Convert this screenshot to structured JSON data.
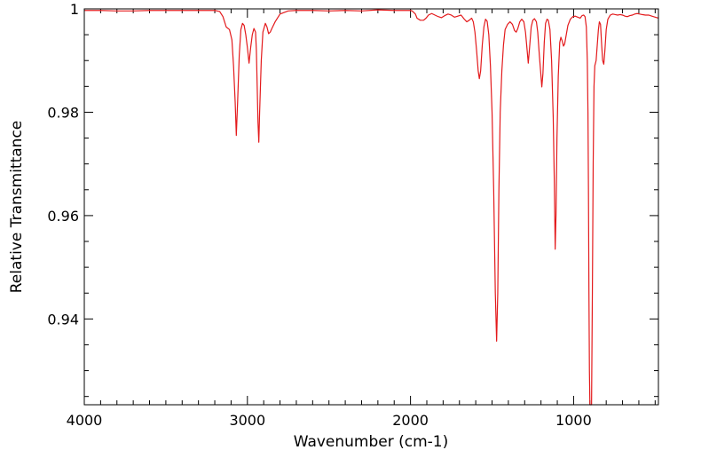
{
  "chart_data": {
    "type": "line",
    "title": "",
    "xlabel": "Wavenumber (cm-1)",
    "ylabel": "Relative Transmittance",
    "xlim": [
      4000,
      480
    ],
    "ylim": [
      0.9234,
      1.0
    ],
    "x_reversed": true,
    "grid": false,
    "legend": "none",
    "x_ticks": [
      {
        "value": 4000,
        "label": "4000"
      },
      {
        "value": 3000,
        "label": "3000"
      },
      {
        "value": 2000,
        "label": "2000"
      },
      {
        "value": 1000,
        "label": "1000"
      }
    ],
    "y_ticks": [
      {
        "value": 1.0,
        "label": "1"
      },
      {
        "value": 0.98,
        "label": "0.98"
      },
      {
        "value": 0.96,
        "label": "0.96"
      },
      {
        "value": 0.94,
        "label": "0.94"
      }
    ],
    "series": [
      {
        "color": "#e31a1c",
        "points": [
          [
            4000,
            0.9997
          ],
          [
            3900,
            0.9997
          ],
          [
            3800,
            0.9996
          ],
          [
            3700,
            0.9996
          ],
          [
            3600,
            0.9997
          ],
          [
            3500,
            0.9997
          ],
          [
            3400,
            0.9997
          ],
          [
            3300,
            0.9997
          ],
          [
            3250,
            0.9997
          ],
          [
            3200,
            0.9997
          ],
          [
            3170,
            0.9995
          ],
          [
            3150,
            0.9985
          ],
          [
            3130,
            0.9965
          ],
          [
            3110,
            0.996
          ],
          [
            3095,
            0.994
          ],
          [
            3085,
            0.989
          ],
          [
            3075,
            0.982
          ],
          [
            3068,
            0.9755
          ],
          [
            3060,
            0.982
          ],
          [
            3050,
            0.991
          ],
          [
            3040,
            0.996
          ],
          [
            3030,
            0.9972
          ],
          [
            3020,
            0.9968
          ],
          [
            3010,
            0.995
          ],
          [
            3000,
            0.9925
          ],
          [
            2990,
            0.9895
          ],
          [
            2980,
            0.9925
          ],
          [
            2970,
            0.995
          ],
          [
            2960,
            0.9962
          ],
          [
            2950,
            0.9955
          ],
          [
            2945,
            0.992
          ],
          [
            2940,
            0.985
          ],
          [
            2935,
            0.978
          ],
          [
            2930,
            0.9742
          ],
          [
            2925,
            0.98
          ],
          [
            2915,
            0.99
          ],
          [
            2905,
            0.9955
          ],
          [
            2890,
            0.9972
          ],
          [
            2880,
            0.9965
          ],
          [
            2870,
            0.9952
          ],
          [
            2860,
            0.9955
          ],
          [
            2850,
            0.9962
          ],
          [
            2830,
            0.9975
          ],
          [
            2800,
            0.999
          ],
          [
            2750,
            0.9996
          ],
          [
            2700,
            0.9997
          ],
          [
            2600,
            0.9997
          ],
          [
            2500,
            0.9996
          ],
          [
            2400,
            0.9997
          ],
          [
            2300,
            0.9996
          ],
          [
            2200,
            0.9998
          ],
          [
            2100,
            0.9997
          ],
          [
            2000,
            0.9997
          ],
          [
            1990,
            0.9996
          ],
          [
            1970,
            0.999
          ],
          [
            1960,
            0.9982
          ],
          [
            1940,
            0.9978
          ],
          [
            1920,
            0.9978
          ],
          [
            1905,
            0.9982
          ],
          [
            1890,
            0.9988
          ],
          [
            1870,
            0.9991
          ],
          [
            1850,
            0.9988
          ],
          [
            1830,
            0.9985
          ],
          [
            1810,
            0.9983
          ],
          [
            1790,
            0.9987
          ],
          [
            1770,
            0.999
          ],
          [
            1750,
            0.9988
          ],
          [
            1730,
            0.9984
          ],
          [
            1710,
            0.9986
          ],
          [
            1690,
            0.9988
          ],
          [
            1670,
            0.998
          ],
          [
            1655,
            0.9975
          ],
          [
            1640,
            0.9978
          ],
          [
            1625,
            0.9982
          ],
          [
            1615,
            0.9975
          ],
          [
            1605,
            0.9955
          ],
          [
            1595,
            0.992
          ],
          [
            1585,
            0.988
          ],
          [
            1578,
            0.9865
          ],
          [
            1570,
            0.988
          ],
          [
            1560,
            0.993
          ],
          [
            1550,
            0.9965
          ],
          [
            1540,
            0.998
          ],
          [
            1530,
            0.9976
          ],
          [
            1520,
            0.995
          ],
          [
            1510,
            0.989
          ],
          [
            1500,
            0.98
          ],
          [
            1490,
            0.965
          ],
          [
            1480,
            0.945
          ],
          [
            1472,
            0.9357
          ],
          [
            1465,
            0.945
          ],
          [
            1458,
            0.965
          ],
          [
            1450,
            0.98
          ],
          [
            1440,
            0.988
          ],
          [
            1430,
            0.993
          ],
          [
            1420,
            0.996
          ],
          [
            1405,
            0.997
          ],
          [
            1390,
            0.9975
          ],
          [
            1375,
            0.997
          ],
          [
            1362,
            0.9958
          ],
          [
            1352,
            0.9955
          ],
          [
            1342,
            0.9962
          ],
          [
            1330,
            0.9975
          ],
          [
            1318,
            0.998
          ],
          [
            1305,
            0.9975
          ],
          [
            1295,
            0.9955
          ],
          [
            1285,
            0.992
          ],
          [
            1278,
            0.9895
          ],
          [
            1270,
            0.9925
          ],
          [
            1260,
            0.9965
          ],
          [
            1250,
            0.9978
          ],
          [
            1240,
            0.9981
          ],
          [
            1228,
            0.9975
          ],
          [
            1220,
            0.9955
          ],
          [
            1210,
            0.991
          ],
          [
            1200,
            0.987
          ],
          [
            1195,
            0.9849
          ],
          [
            1188,
            0.9875
          ],
          [
            1180,
            0.9935
          ],
          [
            1172,
            0.9972
          ],
          [
            1163,
            0.998
          ],
          [
            1155,
            0.9978
          ],
          [
            1145,
            0.996
          ],
          [
            1135,
            0.99
          ],
          [
            1125,
            0.979
          ],
          [
            1118,
            0.966
          ],
          [
            1113,
            0.9535
          ],
          [
            1108,
            0.96
          ],
          [
            1102,
            0.975
          ],
          [
            1094,
            0.987
          ],
          [
            1085,
            0.9935
          ],
          [
            1078,
            0.9945
          ],
          [
            1070,
            0.9938
          ],
          [
            1062,
            0.9928
          ],
          [
            1055,
            0.9932
          ],
          [
            1045,
            0.995
          ],
          [
            1035,
            0.9968
          ],
          [
            1020,
            0.998
          ],
          [
            1005,
            0.9985
          ],
          [
            990,
            0.9986
          ],
          [
            975,
            0.9984
          ],
          [
            960,
            0.9982
          ],
          [
            948,
            0.9987
          ],
          [
            938,
            0.9988
          ],
          [
            930,
            0.9985
          ],
          [
            922,
            0.9965
          ],
          [
            916,
            0.99
          ],
          [
            912,
            0.98
          ],
          [
            909,
            0.965
          ],
          [
            906,
            0.945
          ],
          [
            903,
            0.93
          ],
          [
            900,
            0.9234
          ],
          [
            890,
            0.9234
          ],
          [
            885,
            0.945
          ],
          [
            880,
            0.97
          ],
          [
            875,
            0.985
          ],
          [
            870,
            0.989
          ],
          [
            862,
            0.99
          ],
          [
            855,
            0.993
          ],
          [
            848,
            0.996
          ],
          [
            842,
            0.9975
          ],
          [
            835,
            0.997
          ],
          [
            828,
            0.993
          ],
          [
            822,
            0.99
          ],
          [
            815,
            0.9893
          ],
          [
            808,
            0.992
          ],
          [
            800,
            0.996
          ],
          [
            790,
            0.998
          ],
          [
            775,
            0.9988
          ],
          [
            760,
            0.999
          ],
          [
            745,
            0.9989
          ],
          [
            730,
            0.9988
          ],
          [
            715,
            0.9989
          ],
          [
            700,
            0.9988
          ],
          [
            685,
            0.9986
          ],
          [
            670,
            0.9985
          ],
          [
            655,
            0.9987
          ],
          [
            640,
            0.9988
          ],
          [
            625,
            0.999
          ],
          [
            610,
            0.9991
          ],
          [
            595,
            0.999
          ],
          [
            580,
            0.9989
          ],
          [
            560,
            0.9988
          ],
          [
            540,
            0.9988
          ],
          [
            520,
            0.9986
          ],
          [
            500,
            0.9984
          ],
          [
            480,
            0.9982
          ]
        ]
      }
    ]
  }
}
